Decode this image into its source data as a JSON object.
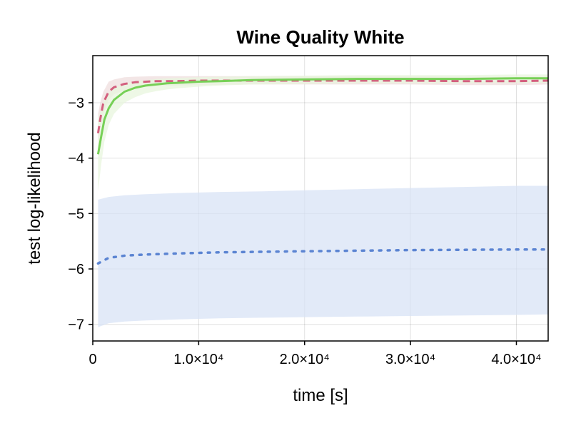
{
  "chart_data": {
    "type": "line",
    "title": "Wine Quality White",
    "xlabel": "time [s]",
    "ylabel": "test log-likelihood",
    "xlim": [
      0,
      43000
    ],
    "ylim": [
      -7.3,
      -2.15
    ],
    "x_ticks": [
      {
        "value": 0,
        "label": "0"
      },
      {
        "value": 10000,
        "label": "1.0×10⁴"
      },
      {
        "value": 20000,
        "label": "2.0×10⁴"
      },
      {
        "value": 30000,
        "label": "3.0×10⁴"
      },
      {
        "value": 40000,
        "label": "4.0×10⁴"
      }
    ],
    "y_ticks": [
      {
        "value": -3,
        "label": "−3"
      },
      {
        "value": -4,
        "label": "−4"
      },
      {
        "value": -5,
        "label": "−5"
      },
      {
        "value": -6,
        "label": "−6"
      },
      {
        "value": -7,
        "label": "−7"
      }
    ],
    "grid": true,
    "series": [
      {
        "style": "dotted",
        "color": "#5b84d2",
        "band_color": "#d8e3f6",
        "x": [
          500,
          1500,
          3000,
          5000,
          8000,
          12000,
          16000,
          20000,
          25000,
          30000,
          35000,
          40000,
          43000
        ],
        "y": [
          -5.9,
          -5.8,
          -5.76,
          -5.74,
          -5.72,
          -5.7,
          -5.69,
          -5.68,
          -5.67,
          -5.66,
          -5.655,
          -5.65,
          -5.65
        ],
        "lower": [
          -7.05,
          -6.98,
          -6.95,
          -6.93,
          -6.91,
          -6.89,
          -6.88,
          -6.87,
          -6.86,
          -6.85,
          -6.84,
          -6.83,
          -6.82
        ],
        "upper": [
          -4.75,
          -4.7,
          -4.67,
          -4.65,
          -4.63,
          -4.61,
          -4.6,
          -4.58,
          -4.56,
          -4.54,
          -4.52,
          -4.5,
          -4.5
        ]
      },
      {
        "style": "dashed",
        "color": "#d35f7e",
        "band_color": "#efdede",
        "x": [
          500,
          700,
          1000,
          1500,
          2000,
          3000,
          4000,
          6000,
          8000,
          10000,
          15000,
          20000,
          25000,
          30000,
          35000,
          40000,
          43000
        ],
        "y": [
          -3.55,
          -3.3,
          -3.0,
          -2.8,
          -2.72,
          -2.66,
          -2.63,
          -2.61,
          -2.61,
          -2.6,
          -2.6,
          -2.6,
          -2.6,
          -2.6,
          -2.61,
          -2.61,
          -2.6
        ],
        "lower": [
          -3.9,
          -3.55,
          -3.2,
          -2.95,
          -2.85,
          -2.77,
          -2.73,
          -2.7,
          -2.69,
          -2.68,
          -2.67,
          -2.67,
          -2.67,
          -2.67,
          -2.68,
          -2.68,
          -2.67
        ],
        "upper": [
          -3.2,
          -3.0,
          -2.8,
          -2.62,
          -2.58,
          -2.54,
          -2.53,
          -2.52,
          -2.52,
          -2.52,
          -2.52,
          -2.52,
          -2.52,
          -2.52,
          -2.53,
          -2.53,
          -2.52
        ]
      },
      {
        "style": "solid",
        "color": "#77d057",
        "band_color": "#e8f5de",
        "x": [
          500,
          800,
          1100,
          1500,
          2000,
          3000,
          4000,
          5000,
          6000,
          7000,
          8000,
          10000,
          12000,
          15000,
          20000,
          25000,
          30000,
          35000,
          40000,
          43000
        ],
        "y": [
          -3.93,
          -3.6,
          -3.3,
          -3.1,
          -2.95,
          -2.8,
          -2.73,
          -2.69,
          -2.67,
          -2.65,
          -2.64,
          -2.62,
          -2.61,
          -2.59,
          -2.58,
          -2.57,
          -2.57,
          -2.57,
          -2.56,
          -2.56
        ],
        "lower": [
          -4.6,
          -4.1,
          -3.7,
          -3.4,
          -3.2,
          -3.0,
          -2.9,
          -2.83,
          -2.79,
          -2.76,
          -2.74,
          -2.71,
          -2.69,
          -2.67,
          -2.66,
          -2.65,
          -2.65,
          -2.65,
          -2.64,
          -2.64
        ],
        "upper": [
          -3.3,
          -3.1,
          -2.95,
          -2.82,
          -2.74,
          -2.66,
          -2.62,
          -2.59,
          -2.57,
          -2.56,
          -2.55,
          -2.54,
          -2.53,
          -2.52,
          -2.51,
          -2.5,
          -2.5,
          -2.5,
          -2.49,
          -2.49
        ]
      }
    ]
  }
}
